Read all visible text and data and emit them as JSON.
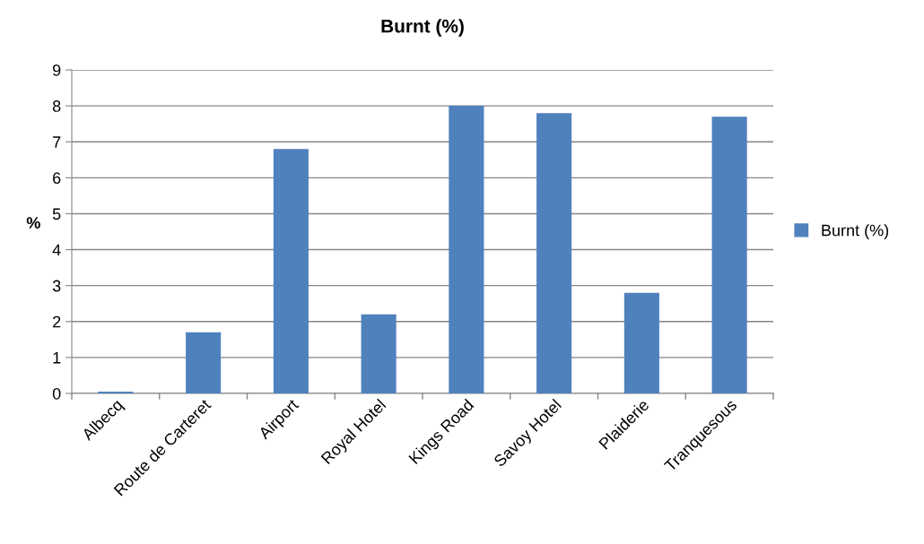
{
  "chart_data": {
    "type": "bar",
    "title": "Burnt (%)",
    "ylabel": "%",
    "categories": [
      "Albecq",
      "Route de Carteret",
      "Airport",
      "Royal Hotel",
      "Kings Road",
      "Savoy Hotel",
      "Plaiderie",
      "Tranquesous"
    ],
    "series": [
      {
        "name": "Burnt (%)",
        "color": "#4f81bd",
        "values": [
          0.05,
          1.7,
          6.8,
          2.2,
          8.0,
          7.8,
          2.8,
          7.7
        ]
      }
    ],
    "ylim": [
      0,
      9
    ],
    "yticks": [
      0,
      1,
      2,
      3,
      4,
      5,
      6,
      7,
      8,
      9
    ],
    "grid": "y",
    "legend": "right"
  }
}
